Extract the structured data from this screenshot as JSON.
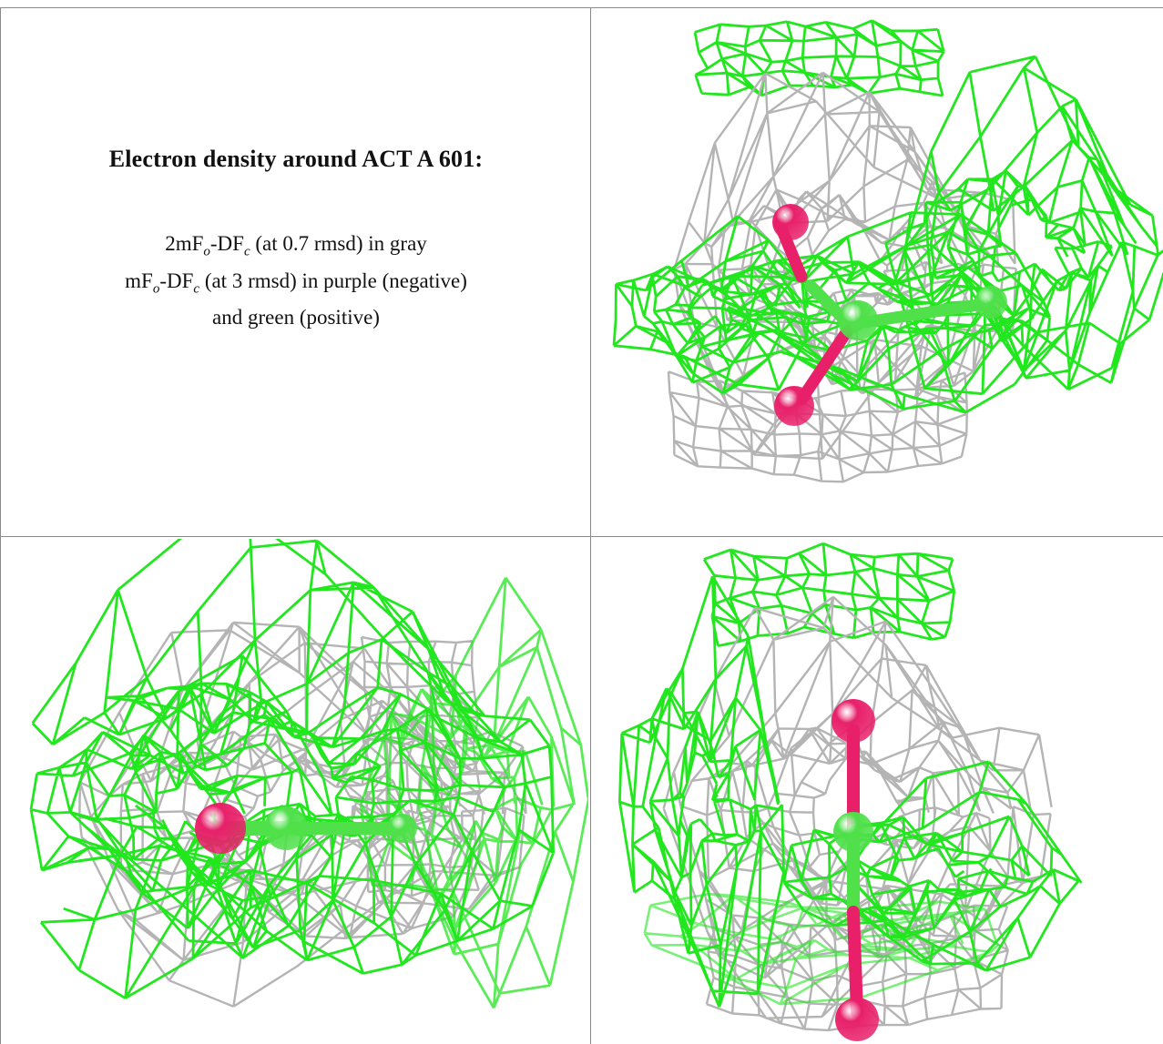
{
  "caption": {
    "title": "Electron density around ACT A 601:",
    "line1_pre": "2mF",
    "line1_sub1": "o",
    "line1_mid": "-DF",
    "line1_sub2": "c",
    "line1_post": " (at 0.7 rmsd) in gray",
    "line2_pre": "mF",
    "line2_sub1": "o",
    "line2_mid": "-DF",
    "line2_sub2": "c",
    "line2_post": " (at 3 rmsd) in purple (negative)",
    "line3": "and green (positive)"
  },
  "colors": {
    "positive_density": "#22e61e",
    "gray_density": "#b4b4b4",
    "oxygen_atom": "#e8206a",
    "carbon_atom": "#4fe04a",
    "grid": "#8a8a8a"
  },
  "panels": [
    "view-top-right",
    "view-bottom-left",
    "view-bottom-right"
  ]
}
